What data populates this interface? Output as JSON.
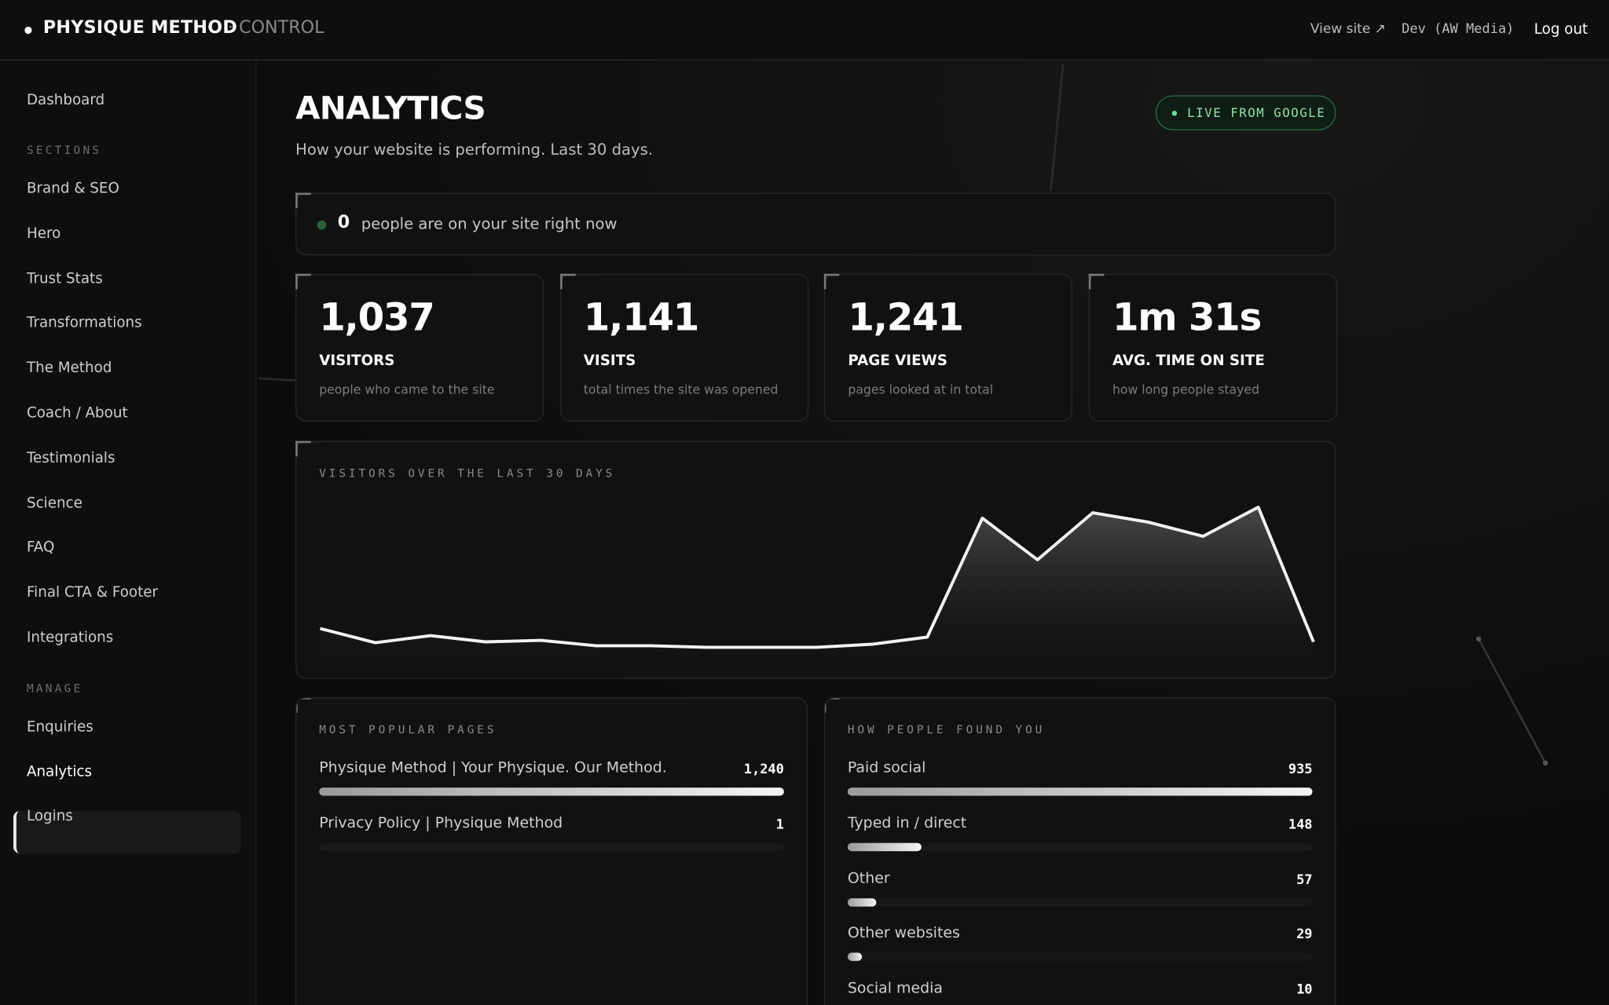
{
  "header": {
    "brand": "PHYSIQUE METHOD",
    "brand_suffix": "· CONTROL",
    "links": [
      "View site ↗",
      "Dev (AW Media)",
      "Log out"
    ]
  },
  "sidebar": {
    "top": [
      "Dashboard"
    ],
    "sections_label": "SECTIONS",
    "sections": [
      "Brand & SEO",
      "Hero",
      "Trust Stats",
      "Transformations",
      "The Method",
      "Coach / About",
      "Testimonials",
      "Science",
      "FAQ",
      "Final CTA & Footer",
      "Integrations"
    ],
    "manage_label": "MANAGE",
    "manage": [
      "Enquiries",
      "Analytics",
      "Logins"
    ]
  },
  "page": {
    "title": "ANALYTICS",
    "subtitle": "How your website is performing. Last 30 days.",
    "badge": "LIVE FROM GOOGLE"
  },
  "live": {
    "count": "0",
    "text": "people are on your site right now"
  },
  "stats": [
    {
      "value": "1,037",
      "label": "VISITORS",
      "desc": "people who came to the site"
    },
    {
      "value": "1,141",
      "label": "VISITS",
      "desc": "total times the site was opened"
    },
    {
      "value": "1,241",
      "label": "PAGE VIEWS",
      "desc": "pages looked at in total"
    },
    {
      "value": "1m 31s",
      "label": "AVG. TIME ON SITE",
      "desc": "how long people stayed"
    }
  ],
  "chart_data": {
    "type": "area",
    "title": "VISITORS OVER THE LAST 30 DAYS",
    "values": [
      25,
      7,
      16,
      8,
      10,
      3,
      3,
      1,
      1,
      1,
      5,
      14,
      166,
      113,
      173,
      161,
      143,
      180,
      8
    ],
    "ylim": [
      0,
      190
    ],
    "color": "#f2f2f2"
  },
  "popular_pages": {
    "title": "MOST POPULAR PAGES",
    "items": [
      {
        "label": "Physique Method | Your Physique. Our Method.",
        "value": 1240,
        "value_label": "1,240"
      },
      {
        "label": "Privacy Policy | Physique Method",
        "value": 1
      }
    ]
  },
  "sources": {
    "title": "HOW PEOPLE FOUND YOU",
    "items": [
      {
        "label": "Paid social",
        "value": 935
      },
      {
        "label": "Typed in / direct",
        "value": 148
      },
      {
        "label": "Other",
        "value": 57
      },
      {
        "label": "Other websites",
        "value": 29
      },
      {
        "label": "Social media",
        "value": 10
      }
    ]
  }
}
